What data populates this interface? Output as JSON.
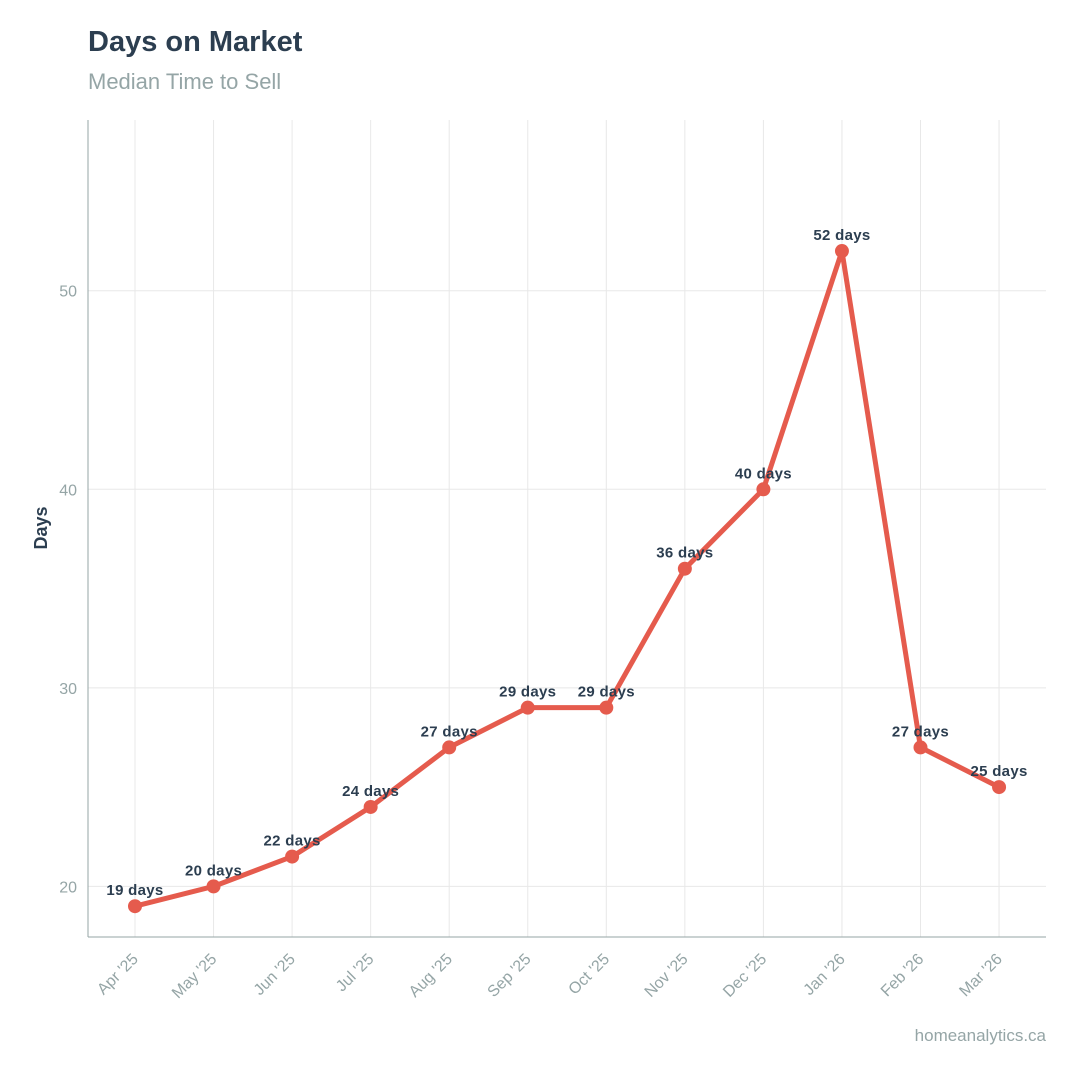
{
  "header": {
    "title": "Days on Market",
    "subtitle": "Median Time to Sell"
  },
  "footer": {
    "source": "homeanalytics.ca"
  },
  "colors": {
    "line": "#e55b4d",
    "text_dark": "#2c3e50",
    "text_muted": "#95a5a6",
    "grid": "#e8e8e8",
    "axis": "#95a5a6"
  },
  "chart_data": {
    "type": "line",
    "title": "Days on Market",
    "subtitle": "Median Time to Sell",
    "xlabel": "",
    "ylabel": "Days",
    "categories": [
      "Apr '25",
      "May '25",
      "Jun '25",
      "Jul '25",
      "Aug '25",
      "Sep '25",
      "Oct '25",
      "Nov '25",
      "Dec '25",
      "Jan '26",
      "Feb '26",
      "Mar '26"
    ],
    "series": [
      {
        "values": [
          19,
          20,
          21.5,
          24,
          27,
          29,
          29,
          36,
          40,
          52,
          27,
          25
        ],
        "labels": [
          "19 days",
          "20 days",
          "22 days",
          "24 days",
          "27 days",
          "29 days",
          "29 days",
          "36 days",
          "40 days",
          "52 days",
          "27 days",
          "25 days"
        ]
      }
    ],
    "yticks": [
      20,
      30,
      40,
      50
    ],
    "ylim": [
      17.45,
      58.6
    ],
    "grid": true,
    "legend": "none"
  }
}
